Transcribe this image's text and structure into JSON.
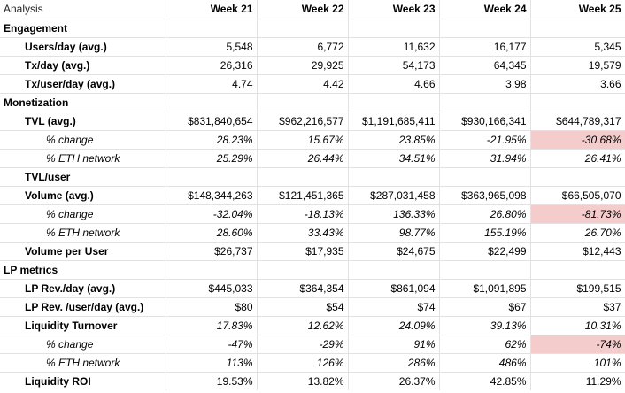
{
  "sheet": {
    "corner": "Analysis",
    "weeks": [
      "Week 21",
      "Week 22",
      "Week 23",
      "Week 24",
      "Week 25"
    ],
    "rows": [
      {
        "label": "Engagement",
        "style": "section",
        "values": [
          "",
          "",
          "",
          "",
          ""
        ]
      },
      {
        "label": "Users/day (avg.)",
        "style": "metric",
        "values": [
          "5,548",
          "6,772",
          "11,632",
          "16,177",
          "5,345"
        ]
      },
      {
        "label": "Tx/day (avg.)",
        "style": "metric",
        "values": [
          "26,316",
          "29,925",
          "54,173",
          "64,345",
          "19,579"
        ]
      },
      {
        "label": "Tx/user/day (avg.)",
        "style": "metric",
        "values": [
          "4.74",
          "4.42",
          "4.66",
          "3.98",
          "3.66"
        ]
      },
      {
        "label": "Monetization",
        "style": "section",
        "values": [
          "",
          "",
          "",
          "",
          ""
        ]
      },
      {
        "label": "TVL (avg.)",
        "style": "metric",
        "values": [
          "$831,840,654",
          "$962,216,577",
          "$1,191,685,411",
          "$930,166,341",
          "$644,789,317"
        ]
      },
      {
        "label": "% change",
        "style": "sub",
        "values": [
          "28.23%",
          "15.67%",
          "23.85%",
          "-21.95%",
          "-30.68%"
        ],
        "highlight": [
          4
        ]
      },
      {
        "label": "% ETH network",
        "style": "sub",
        "values": [
          "25.29%",
          "26.44%",
          "34.51%",
          "31.94%",
          "26.41%"
        ]
      },
      {
        "label": "TVL/user",
        "style": "metric",
        "values": [
          "",
          "",
          "",
          "",
          ""
        ]
      },
      {
        "label": "Volume (avg.)",
        "style": "metric",
        "values": [
          "$148,344,263",
          "$121,451,365",
          "$287,031,458",
          "$363,965,098",
          "$66,505,070"
        ]
      },
      {
        "label": "% change",
        "style": "sub",
        "values": [
          "-32.04%",
          "-18.13%",
          "136.33%",
          "26.80%",
          "-81.73%"
        ],
        "highlight": [
          4
        ]
      },
      {
        "label": "% ETH network",
        "style": "sub",
        "values": [
          "28.60%",
          "33.43%",
          "98.77%",
          "155.19%",
          "26.70%"
        ]
      },
      {
        "label": "Volume per User",
        "style": "metric",
        "values": [
          "$26,737",
          "$17,935",
          "$24,675",
          "$22,499",
          "$12,443"
        ]
      },
      {
        "label": "LP metrics",
        "style": "section",
        "values": [
          "",
          "",
          "",
          "",
          ""
        ]
      },
      {
        "label": "LP Rev./day (avg.)",
        "style": "metric",
        "values": [
          "$445,033",
          "$364,354",
          "$861,094",
          "$1,091,895",
          "$199,515"
        ]
      },
      {
        "label": "LP Rev. /user/day (avg.)",
        "style": "metric",
        "values": [
          "$80",
          "$54",
          "$74",
          "$67",
          "$37"
        ]
      },
      {
        "label": "Liquidity Turnover",
        "style": "metric",
        "values": [
          "17.83%",
          "12.62%",
          "24.09%",
          "39.13%",
          "10.31%"
        ],
        "italic_values": true
      },
      {
        "label": "% change",
        "style": "sub",
        "values": [
          "-47%",
          "-29%",
          "91%",
          "62%",
          "-74%"
        ],
        "highlight": [
          4
        ]
      },
      {
        "label": "% ETH network",
        "style": "sub",
        "values": [
          "113%",
          "126%",
          "286%",
          "486%",
          "101%"
        ]
      },
      {
        "label": "Liquidity ROI",
        "style": "metric",
        "values": [
          "19.53%",
          "13.82%",
          "26.37%",
          "42.85%",
          "11.29%"
        ],
        "rule_top": true
      }
    ]
  },
  "colors": {
    "highlight_negative": "#f4cccc",
    "gridline": "#e2e2e2"
  }
}
